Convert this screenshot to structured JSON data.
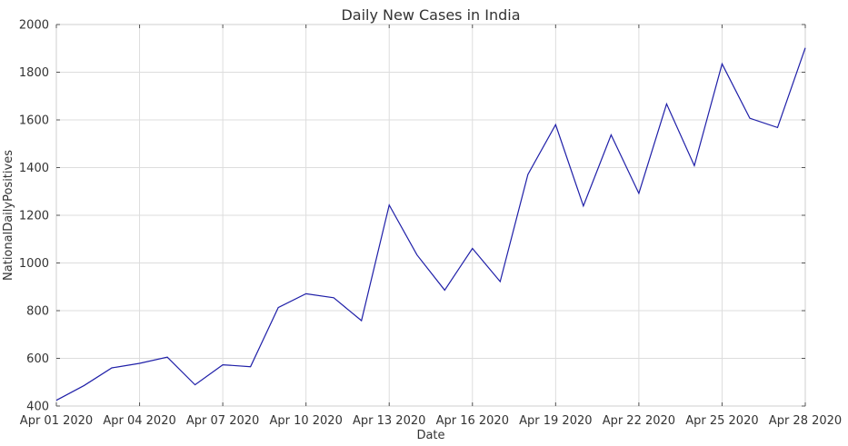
{
  "chart_data": {
    "type": "line",
    "title": "Daily New Cases in India",
    "xlabel": "Date",
    "ylabel": "NationalDailyPositives",
    "ylim": [
      400,
      2000
    ],
    "yticks": [
      400,
      600,
      800,
      1000,
      1200,
      1400,
      1600,
      1800,
      2000
    ],
    "xticks": [
      "Apr 01 2020",
      "Apr 04 2020",
      "Apr 07 2020",
      "Apr 10 2020",
      "Apr 13 2020",
      "Apr 16 2020",
      "Apr 19 2020",
      "Apr 22 2020",
      "Apr 25 2020",
      "Apr 28 2020"
    ],
    "grid": true,
    "line_color": "#1f1fa8",
    "x": [
      "2020-04-01",
      "2020-04-02",
      "2020-04-03",
      "2020-04-04",
      "2020-04-05",
      "2020-04-06",
      "2020-04-07",
      "2020-04-08",
      "2020-04-09",
      "2020-04-10",
      "2020-04-11",
      "2020-04-12",
      "2020-04-13",
      "2020-04-14",
      "2020-04-15",
      "2020-04-16",
      "2020-04-17",
      "2020-04-18",
      "2020-04-19",
      "2020-04-20",
      "2020-04-21",
      "2020-04-22",
      "2020-04-23",
      "2020-04-24",
      "2020-04-25",
      "2020-04-26",
      "2020-04-27",
      "2020-04-28"
    ],
    "series": [
      {
        "values": [
          424,
          486,
          560,
          579,
          605,
          489,
          573,
          565,
          813,
          871,
          854,
          758,
          1243,
          1034,
          886,
          1061,
          922,
          1371,
          1580,
          1239,
          1537,
          1292,
          1667,
          1408,
          1835,
          1607,
          1568,
          1902
        ]
      }
    ]
  }
}
